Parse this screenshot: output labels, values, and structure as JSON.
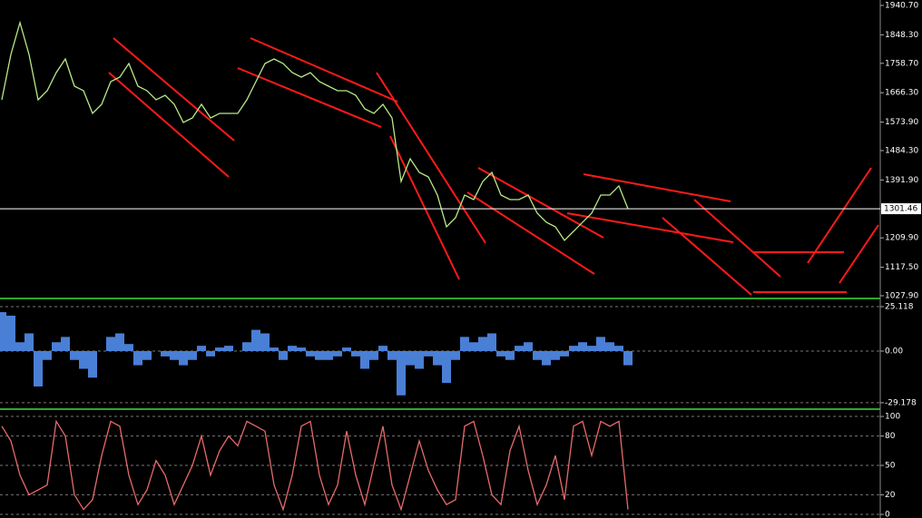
{
  "chart_data": [
    {
      "type": "line",
      "color": "#b8e986",
      "values": [
        1644.0,
        1786.7,
        1886.5,
        1786.7,
        1644.0,
        1672.6,
        1729.6,
        1772.4,
        1686.8,
        1672.6,
        1601.3,
        1629.8,
        1701.1,
        1715.4,
        1758.1,
        1686.8,
        1672.6,
        1644.0,
        1658.3,
        1629.8,
        1572.7,
        1587.0,
        1629.8,
        1587.0,
        1601.3,
        1601.3,
        1601.3,
        1644.0,
        1701.1,
        1758.1,
        1772.4,
        1758.1,
        1729.6,
        1715.4,
        1729.6,
        1701.1,
        1686.8,
        1672.6,
        1672.6,
        1658.3,
        1615.5,
        1601.3,
        1629.8,
        1587.0,
        1387.3,
        1458.6,
        1415.8,
        1401.6,
        1344.5,
        1244.7,
        1273.2,
        1344.5,
        1330.3,
        1387.3,
        1415.8,
        1344.5,
        1330.3,
        1330.3,
        1344.5,
        1287.5,
        1259.0,
        1244.7,
        1201.9,
        1230.4,
        1259.0,
        1287.5,
        1344.5,
        1344.5,
        1373.1,
        1301.46
      ],
      "ylim": [
        1019.3,
        1957.8
      ],
      "yticks": [
        {
          "value": 1940.7,
          "label": "1940.70"
        },
        {
          "value": 1848.3,
          "label": "1848.30"
        },
        {
          "value": 1758.7,
          "label": "1758.70"
        },
        {
          "value": 1666.3,
          "label": "1666.30"
        },
        {
          "value": 1573.9,
          "label": "1573.90"
        },
        {
          "value": 1484.3,
          "label": "1484.30"
        },
        {
          "value": 1391.9,
          "label": "1391.90"
        },
        {
          "value": 1209.9,
          "label": "1209.90"
        },
        {
          "value": 1117.5,
          "label": "1117.50"
        },
        {
          "value": 1027.9,
          "label": "1027.90"
        }
      ],
      "grid": false
    },
    {
      "type": "bar",
      "color": "#4a7fd6",
      "values": [
        22,
        20,
        5,
        10,
        -20,
        -5,
        5,
        8,
        -5,
        -10,
        -15,
        0,
        8,
        10,
        4,
        -8,
        -5,
        0,
        -3,
        -5,
        -8,
        -5,
        3,
        -3,
        2,
        3,
        0,
        5,
        12,
        10,
        2,
        -5,
        3,
        2,
        -3,
        -5,
        -5,
        -3,
        2,
        -3,
        -10,
        -5,
        3,
        -5,
        -25,
        -8,
        -10,
        -3,
        -8,
        -18,
        -5,
        8,
        5,
        8,
        10,
        -3,
        -5,
        3,
        5,
        -5,
        -8,
        -5,
        -3,
        3,
        5,
        3,
        8,
        5,
        3,
        -8
      ],
      "ylim": [
        -32.8,
        28.7
      ],
      "yticks": [
        25.118,
        {
          "value": 0,
          "label": "0.00"
        },
        -29.178
      ],
      "grid": true
    },
    {
      "type": "line",
      "color": "#e86a6a",
      "values": [
        90,
        75,
        40,
        20,
        25,
        30,
        95,
        80,
        20,
        5,
        15,
        60,
        95,
        90,
        40,
        10,
        25,
        55,
        40,
        10,
        30,
        50,
        80,
        40,
        65,
        80,
        70,
        95,
        90,
        85,
        30,
        5,
        40,
        90,
        95,
        40,
        10,
        30,
        85,
        40,
        10,
        50,
        90,
        30,
        5,
        40,
        75,
        45,
        25,
        10,
        15,
        90,
        95,
        60,
        20,
        10,
        65,
        90,
        45,
        10,
        30,
        60,
        15,
        90,
        95,
        60,
        95,
        90,
        95,
        5
      ],
      "ylim": [
        -3.7,
        105.6
      ],
      "yticks": [
        100,
        80,
        50,
        20,
        0
      ],
      "grid": true
    }
  ]
}
